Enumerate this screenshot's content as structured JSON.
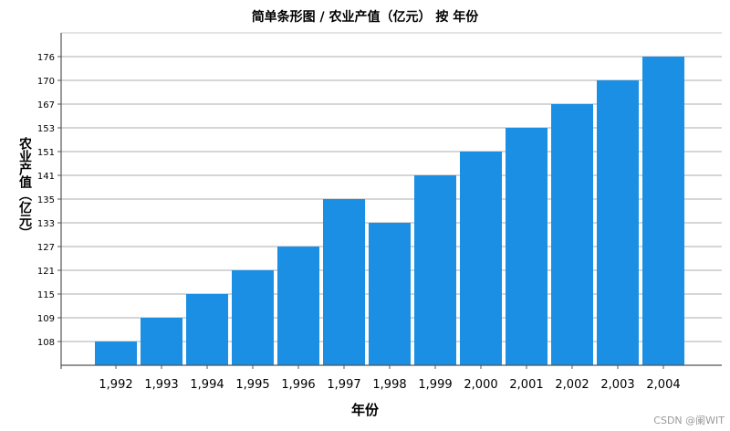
{
  "chart_data": {
    "type": "bar",
    "title": "简单条形图 / 农业产值（亿元） 按 年份",
    "xlabel": "年份",
    "ylabel": "农业产值（亿元）",
    "categories": [
      "1,992",
      "1,993",
      "1,994",
      "1,995",
      "1,996",
      "1,997",
      "1,998",
      "1,999",
      "2,000",
      "2,001",
      "2,002",
      "2,003",
      "2,004"
    ],
    "values": [
      108,
      109,
      115,
      121,
      127,
      135,
      133,
      141,
      151,
      153,
      167,
      170,
      176
    ],
    "y_ticks": [
      "108",
      "109",
      "115",
      "121",
      "127",
      "133",
      "135",
      "141",
      "151",
      "153",
      "167",
      "170",
      "176"
    ],
    "y_axis_note": "categorical (ordinal) value axis, evenly spaced ticks in sorted order",
    "grid": true,
    "legend": "none",
    "colors": {
      "bar": "#1a8fe3",
      "grid": "#c8c8c8",
      "axis": "#555555"
    }
  },
  "watermark": "CSDN @阑WIT"
}
